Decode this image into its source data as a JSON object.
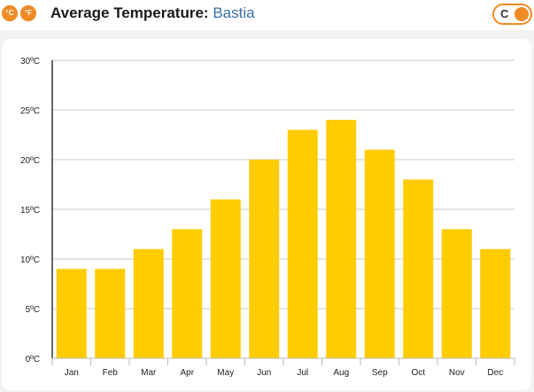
{
  "header": {
    "units": [
      "°C",
      "°F"
    ],
    "title_main": "Average Temperature:",
    "title_city": "Bastia",
    "toggle_label": "C"
  },
  "colors": {
    "bar": "#ffcc00",
    "accent": "#f08a24",
    "city": "#3d6ea8"
  },
  "chart_data": {
    "type": "bar",
    "categories": [
      "Jan",
      "Feb",
      "Mar",
      "Apr",
      "May",
      "Jun",
      "Jul",
      "Aug",
      "Sep",
      "Oct",
      "Nov",
      "Dec"
    ],
    "values": [
      9,
      9,
      11,
      13,
      16,
      20,
      23,
      24,
      21,
      18,
      13,
      11
    ],
    "ylim": [
      0,
      30
    ],
    "yticks": [
      0,
      5,
      10,
      15,
      20,
      25,
      30
    ],
    "ytick_labels": [
      "0ºC",
      "5ºC",
      "10ºC",
      "15ºC",
      "20ºC",
      "25ºC",
      "30ºC"
    ],
    "grid": true,
    "legend": "none"
  }
}
